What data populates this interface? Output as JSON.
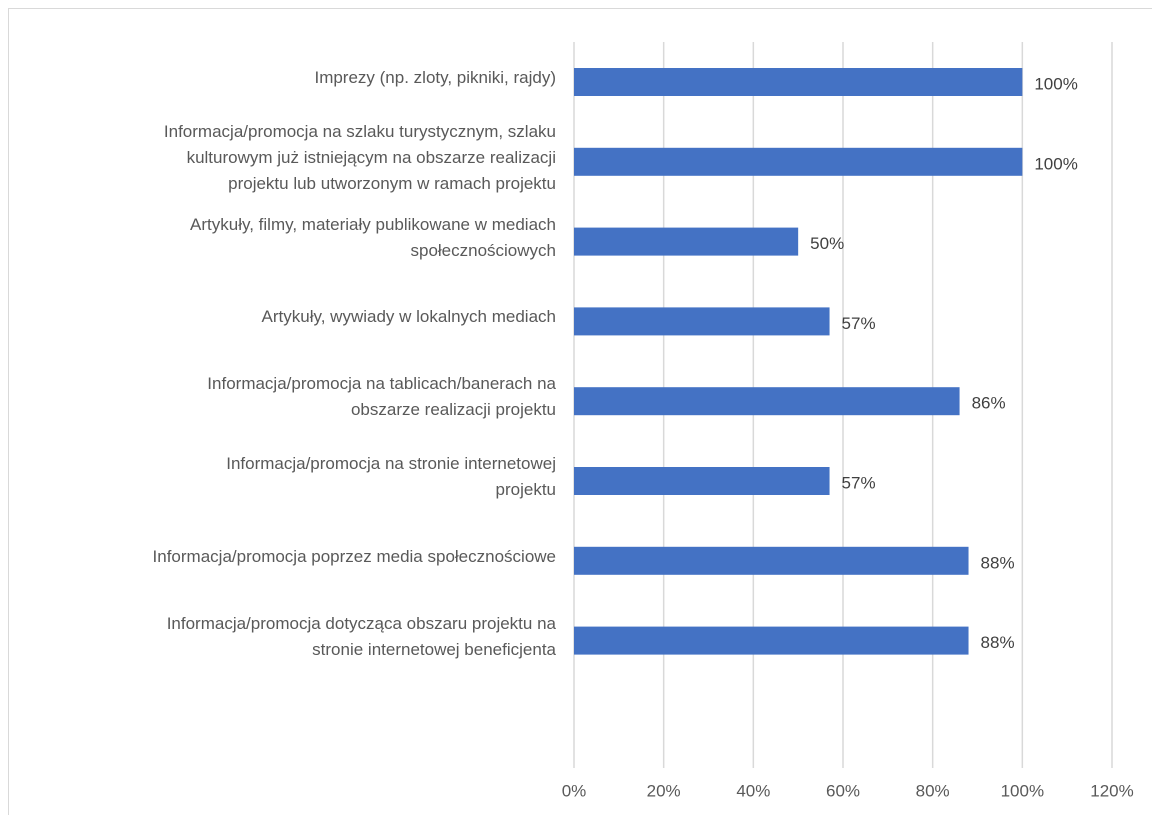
{
  "chart_data": {
    "type": "bar",
    "orientation": "horizontal",
    "categories": [
      "Imprezy (np. zloty, pikniki, rajdy)",
      "Informacja/promocja na szlaku turystycznym, szlaku\nkulturowym już istniejącym na obszarze realizacji\nprojektu lub utworzonym w ramach projektu",
      "Artykuły, filmy, materiały publikowane w mediach\nspołecznościowych",
      "Artykuły, wywiady w lokalnych mediach",
      "Informacja/promocja na tablicach/banerach na\nobszarze realizacji projektu",
      "Informacja/promocja na stronie internetowej\nprojektu",
      "Informacja/promocja poprzez media społecznościowe",
      "Informacja/promocja dotycząca obszaru projektu na\nstronie internetowej beneficjenta"
    ],
    "values": [
      100,
      100,
      50,
      57,
      86,
      57,
      88,
      88
    ],
    "value_labels": [
      "100%",
      "100%",
      "50%",
      "57%",
      "86%",
      "57%",
      "88%",
      "88%"
    ],
    "color": "#4472c4",
    "xlim": [
      0,
      120
    ],
    "xticks": [
      {
        "value": 0,
        "label": "0%"
      },
      {
        "value": 20,
        "label": "20%"
      },
      {
        "value": 40,
        "label": "40%"
      },
      {
        "value": 60,
        "label": "60%"
      },
      {
        "value": 80,
        "label": "80%"
      },
      {
        "value": 100,
        "label": "100%"
      },
      {
        "value": 120,
        "label": "120%"
      }
    ],
    "grid": true
  }
}
